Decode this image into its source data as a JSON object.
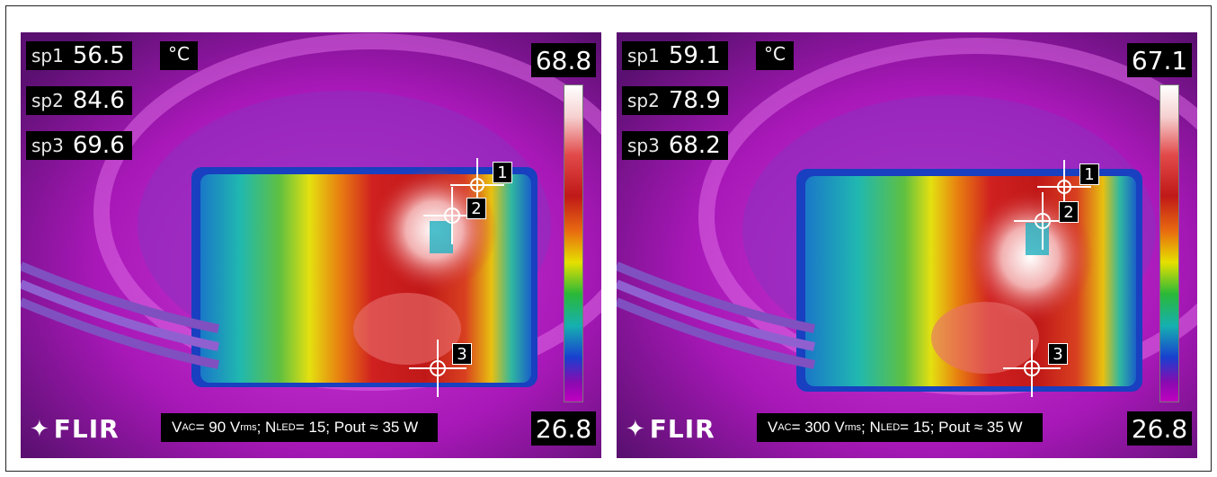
{
  "panels": [
    {
      "sp1_label": "sp1",
      "sp1_value": "56.5",
      "sp2_label": "sp2",
      "sp2_value": "84.6",
      "sp3_label": "sp3",
      "sp3_value": "69.6",
      "unit": "°C",
      "scale_max": "68.8",
      "scale_min": "26.8",
      "logo": "FLIR",
      "caption": {
        "v": "V",
        "ac": "AC",
        "eq1": " = 90 V",
        "rms": "rms",
        "semi1": "; N",
        "led": "LED",
        "rest": " = 15; Pout ≈ 35 W"
      },
      "marker_labels": [
        "1",
        "2",
        "3"
      ]
    },
    {
      "sp1_label": "sp1",
      "sp1_value": "59.1",
      "sp2_label": "sp2",
      "sp2_value": "78.9",
      "sp3_label": "sp3",
      "sp3_value": "68.2",
      "unit": "°C",
      "scale_max": "67.1",
      "scale_min": "26.8",
      "logo": "FLIR",
      "caption": {
        "v": "V",
        "ac": "AC",
        "eq1": " = 300 V",
        "rms": "rms",
        "semi1": "; N",
        "led": "LED",
        "rest": " = 15; Pout ≈ 35 W"
      },
      "marker_labels": [
        "1",
        "2",
        "3"
      ]
    }
  ],
  "colors": {
    "background": "#c000c8",
    "hot": "#c01818",
    "white": "#ffffff"
  }
}
